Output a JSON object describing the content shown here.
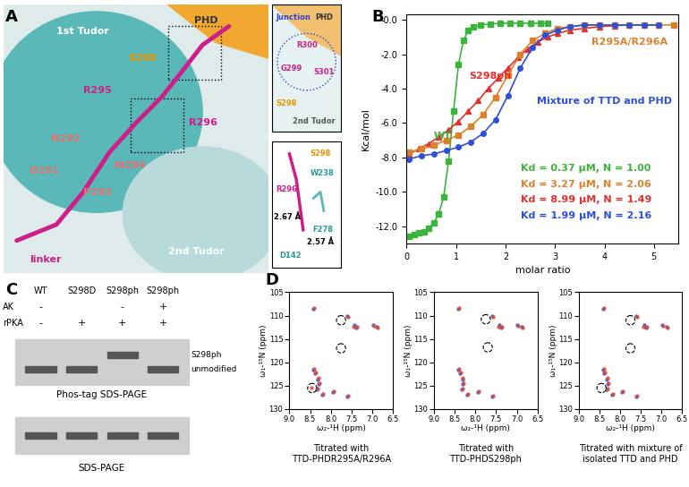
{
  "panel_labels": [
    "A",
    "B",
    "C",
    "D"
  ],
  "structure": {
    "main_labels": [
      {
        "text": "1st Tudor",
        "color": "#ffffff"
      },
      {
        "text": "2nd Tudor",
        "color": "#ffffff"
      },
      {
        "text": "PHD",
        "color": "#333333"
      },
      {
        "text": "linker",
        "color": "#cc1f8a"
      },
      {
        "text": "S298",
        "color": "#e69500"
      },
      {
        "text": "R295",
        "color": "#cc1f8a"
      },
      {
        "text": "R296",
        "color": "#cc1f8a"
      },
      {
        "text": "M294",
        "color": "#e8706a"
      },
      {
        "text": "P293",
        "color": "#e8706a"
      },
      {
        "text": "N292",
        "color": "#e8706a"
      },
      {
        "text": "D291",
        "color": "#e8706a"
      }
    ],
    "junction_labels": [
      {
        "text": "Junction",
        "color": "#2f3fd0"
      },
      {
        "text": "PHD",
        "color": "#333333"
      },
      {
        "text": "R300",
        "color": "#cc1f8a"
      },
      {
        "text": "S301",
        "color": "#cc1f8a"
      },
      {
        "text": "G299",
        "color": "#cc1f8a"
      },
      {
        "text": "S298",
        "color": "#e69500"
      },
      {
        "text": "2nd Tudor",
        "color": "#555555"
      }
    ],
    "contact_labels": [
      {
        "text": "S298",
        "color": "#e69500"
      },
      {
        "text": "W238",
        "color": "#2a9a9a"
      },
      {
        "text": "R296",
        "color": "#cc1f8a"
      },
      {
        "text": "F278",
        "color": "#2a9a9a"
      },
      {
        "text": "D142",
        "color": "#2a9a9a"
      },
      {
        "text": "2.67 Å",
        "color": "#000000"
      },
      {
        "text": "2.57 Å",
        "color": "#000000"
      }
    ]
  },
  "chart_data": [
    {
      "type": "line",
      "xlabel": "molar ratio",
      "ylabel": "Kcal/mol",
      "xlim": [
        0,
        5.5
      ],
      "xticks": [
        0,
        1,
        2,
        3,
        4,
        5
      ],
      "ylim": [
        -13,
        0.3
      ],
      "yticks": [
        {
          "value": 0,
          "label": "-0.0"
        },
        {
          "value": -2,
          "label": "-2.0"
        },
        {
          "value": -4,
          "label": "-4.0"
        },
        {
          "value": -6,
          "label": "-6.0"
        },
        {
          "value": -8,
          "label": "-8.0"
        },
        {
          "value": -10,
          "label": "-10.0"
        },
        {
          "value": -12,
          "label": "-12.0"
        }
      ],
      "series": [
        {
          "name": "WT",
          "color": "#3cb43c",
          "marker": "square",
          "x": [
            0.05,
            0.15,
            0.25,
            0.35,
            0.45,
            0.55,
            0.65,
            0.75,
            0.85,
            0.95,
            1.05,
            1.15,
            1.25,
            1.35,
            1.5,
            1.7,
            1.9,
            2.1,
            2.3,
            2.5,
            2.7,
            2.85
          ],
          "values": [
            -12.6,
            -12.5,
            -12.4,
            -12.3,
            -12.1,
            -11.8,
            -11.3,
            -10.3,
            -8.2,
            -5.3,
            -2.6,
            -1.2,
            -0.6,
            -0.4,
            -0.3,
            -0.25,
            -0.2,
            -0.2,
            -0.2,
            -0.2,
            -0.2,
            -0.2
          ]
        },
        {
          "name": "S298ph",
          "color": "#e03030",
          "marker": "triangle",
          "x": [
            0.05,
            0.25,
            0.45,
            0.65,
            0.85,
            1.05,
            1.25,
            1.45,
            1.65,
            1.85,
            2.05,
            2.25,
            2.45,
            2.65,
            2.85,
            3.05,
            3.3,
            3.6,
            3.9,
            4.2,
            4.5,
            4.8,
            5.1
          ],
          "values": [
            -7.8,
            -7.5,
            -7.2,
            -6.8,
            -6.4,
            -5.9,
            -5.3,
            -4.7,
            -4.0,
            -3.4,
            -2.8,
            -2.2,
            -1.7,
            -1.3,
            -1.0,
            -0.8,
            -0.6,
            -0.5,
            -0.4,
            -0.35,
            -0.3,
            -0.3,
            -0.3
          ]
        },
        {
          "name": "R295A/R296A",
          "color": "#d9822b",
          "marker": "square",
          "x": [
            0.05,
            0.3,
            0.55,
            0.8,
            1.05,
            1.3,
            1.55,
            1.8,
            2.05,
            2.3,
            2.55,
            2.8,
            3.05,
            3.3,
            3.6,
            3.9,
            4.2,
            4.5,
            4.8,
            5.1,
            5.4
          ],
          "values": [
            -7.7,
            -7.5,
            -7.3,
            -7.0,
            -6.7,
            -6.2,
            -5.5,
            -4.5,
            -3.2,
            -2.0,
            -1.2,
            -0.8,
            -0.5,
            -0.4,
            -0.3,
            -0.3,
            -0.3,
            -0.3,
            -0.3,
            -0.3,
            -0.3
          ]
        },
        {
          "name": "Mixture of TTD and PHD",
          "color": "#2f4fd8",
          "marker": "circle",
          "x": [
            0.05,
            0.3,
            0.55,
            0.8,
            1.05,
            1.3,
            1.55,
            1.8,
            2.05,
            2.3,
            2.55,
            2.8,
            3.05,
            3.3,
            3.6,
            3.9,
            4.2,
            4.5,
            4.8,
            5.1
          ],
          "values": [
            -8.1,
            -7.9,
            -7.8,
            -7.6,
            -7.4,
            -7.1,
            -6.6,
            -5.8,
            -4.4,
            -2.8,
            -1.6,
            -0.9,
            -0.6,
            -0.4,
            -0.3,
            -0.3,
            -0.3,
            -0.3,
            -0.3,
            -0.3
          ]
        }
      ],
      "annotations": [
        {
          "text": "Kd = 0.37 μM, N = 1.00",
          "color": "#3cb43c"
        },
        {
          "text": "Kd = 3.27 μM, N = 2.06",
          "color": "#d9822b"
        },
        {
          "text": "Kd = 8.99 μM, N = 1.49",
          "color": "#e03030"
        },
        {
          "text": "Kd = 1.99 μM, N = 2.16",
          "color": "#2f4fd8"
        }
      ]
    },
    {
      "type": "scatter",
      "title": "Titrated with\nTTD-PHDR295A/R296A",
      "xlabel": "ω₂-¹H (ppm)",
      "ylabel": "ω₁-¹⁵N (ppm)",
      "xlim": [
        9.0,
        6.5
      ],
      "xticks": [
        9.0,
        8.5,
        8.0,
        7.5,
        7.0,
        6.5
      ],
      "ylim": [
        130,
        105
      ],
      "yticks": [
        105,
        110,
        115,
        120,
        125,
        130
      ],
      "series": [
        {
          "color": "#2f4fd8",
          "x": [
            8.42,
            7.6,
            7.42,
            7.38,
            6.98,
            6.88,
            8.42,
            8.38,
            8.32,
            8.3,
            8.33,
            7.95,
            7.6,
            8.2
          ],
          "values": [
            108.6,
            110.0,
            112.1,
            112.6,
            112.0,
            112.4,
            121.6,
            122.4,
            123.6,
            124.6,
            125.8,
            126.4,
            127.3,
            127.0
          ]
        },
        {
          "color": "#e0462f",
          "x": [
            8.4,
            7.58,
            7.44,
            7.36,
            6.96,
            6.86,
            8.4,
            8.36,
            8.3,
            8.28,
            8.31,
            7.93,
            7.58,
            8.18,
            8.46
          ],
          "values": [
            108.4,
            110.2,
            112.3,
            112.4,
            112.2,
            112.6,
            121.4,
            122.2,
            123.4,
            124.4,
            125.6,
            126.2,
            127.1,
            126.8,
            125.4
          ]
        }
      ],
      "circled": [
        [
          7.75,
          111.0
        ],
        [
          7.75,
          117.0
        ],
        [
          8.45,
          125.5
        ]
      ]
    },
    {
      "type": "scatter",
      "title": "Titrated with\nTTD-PHDS298ph",
      "xlabel": "ω₂-¹H (ppm)",
      "ylabel": "ω₁-¹⁵N (ppm)",
      "xlim": [
        9.0,
        6.5
      ],
      "xticks": [
        9.0,
        8.5,
        8.0,
        7.5,
        7.0,
        6.5
      ],
      "ylim": [
        130,
        105
      ],
      "yticks": [
        105,
        110,
        115,
        120,
        125,
        130
      ],
      "series": [
        {
          "color": "#2f4fd8",
          "x": [
            8.42,
            7.6,
            7.42,
            7.38,
            6.98,
            6.88,
            8.42,
            8.38,
            8.32,
            8.3,
            8.33,
            7.95,
            7.6,
            8.2
          ],
          "values": [
            108.6,
            110.0,
            112.1,
            112.6,
            112.0,
            112.4,
            121.6,
            122.4,
            123.6,
            124.6,
            125.8,
            126.4,
            127.3,
            127.0
          ]
        },
        {
          "color": "#e0462f",
          "x": [
            8.4,
            7.58,
            7.44,
            7.36,
            6.96,
            6.86,
            8.4,
            8.36,
            8.3,
            8.28,
            8.31,
            7.93,
            7.58,
            8.18
          ],
          "values": [
            108.4,
            110.2,
            112.3,
            112.4,
            112.2,
            112.6,
            121.4,
            122.2,
            123.4,
            124.4,
            125.6,
            126.2,
            127.1,
            126.8
          ]
        }
      ],
      "circled": [
        [
          7.75,
          110.8
        ],
        [
          7.7,
          116.8
        ]
      ]
    },
    {
      "type": "scatter",
      "title": "Titrated with mixture of\nisolated TTD and PHD",
      "xlabel": "ω₂-¹H (ppm)",
      "ylabel": "ω₁-¹⁵N (ppm)",
      "xlim": [
        9.0,
        6.5
      ],
      "xticks": [
        9.0,
        8.5,
        8.0,
        7.5,
        7.0,
        6.5
      ],
      "ylim": [
        130,
        105
      ],
      "yticks": [
        105,
        110,
        115,
        120,
        125,
        130
      ],
      "series": [
        {
          "color": "#2f4fd8",
          "x": [
            8.42,
            7.6,
            7.42,
            7.38,
            6.98,
            6.88,
            8.42,
            8.38,
            8.32,
            8.3,
            8.33,
            7.95,
            7.6,
            8.2
          ],
          "values": [
            108.6,
            110.0,
            112.1,
            112.6,
            112.0,
            112.4,
            121.6,
            122.4,
            123.6,
            124.6,
            125.8,
            126.4,
            127.3,
            127.0
          ]
        },
        {
          "color": "#e0462f",
          "x": [
            8.4,
            7.58,
            7.44,
            7.36,
            6.96,
            6.86,
            8.4,
            8.36,
            8.3,
            8.28,
            8.31,
            7.93,
            7.58,
            8.18
          ],
          "values": [
            108.4,
            110.2,
            112.3,
            112.4,
            112.2,
            112.6,
            121.4,
            122.2,
            123.4,
            124.4,
            125.6,
            126.2,
            127.1,
            126.8
          ]
        }
      ],
      "circled": [
        [
          7.75,
          111.0
        ],
        [
          7.75,
          117.0
        ],
        [
          8.45,
          125.5
        ]
      ]
    }
  ],
  "gel": {
    "lanes": [
      "WT",
      "S298D",
      "S298ph",
      "S298ph"
    ],
    "conditions": [
      {
        "name": "AK",
        "marks": [
          "-",
          null,
          "-",
          "+"
        ]
      },
      {
        "name": "rPKA",
        "marks": [
          "-",
          "+",
          "+",
          "+"
        ]
      }
    ],
    "band_labels": [
      "S298ph",
      "unmodified"
    ],
    "bands": [
      "unmodified",
      "unmodified",
      "S298ph",
      "unmodified"
    ],
    "captions": [
      "Phos-tag SDS-PAGE",
      "SDS-PAGE"
    ]
  }
}
